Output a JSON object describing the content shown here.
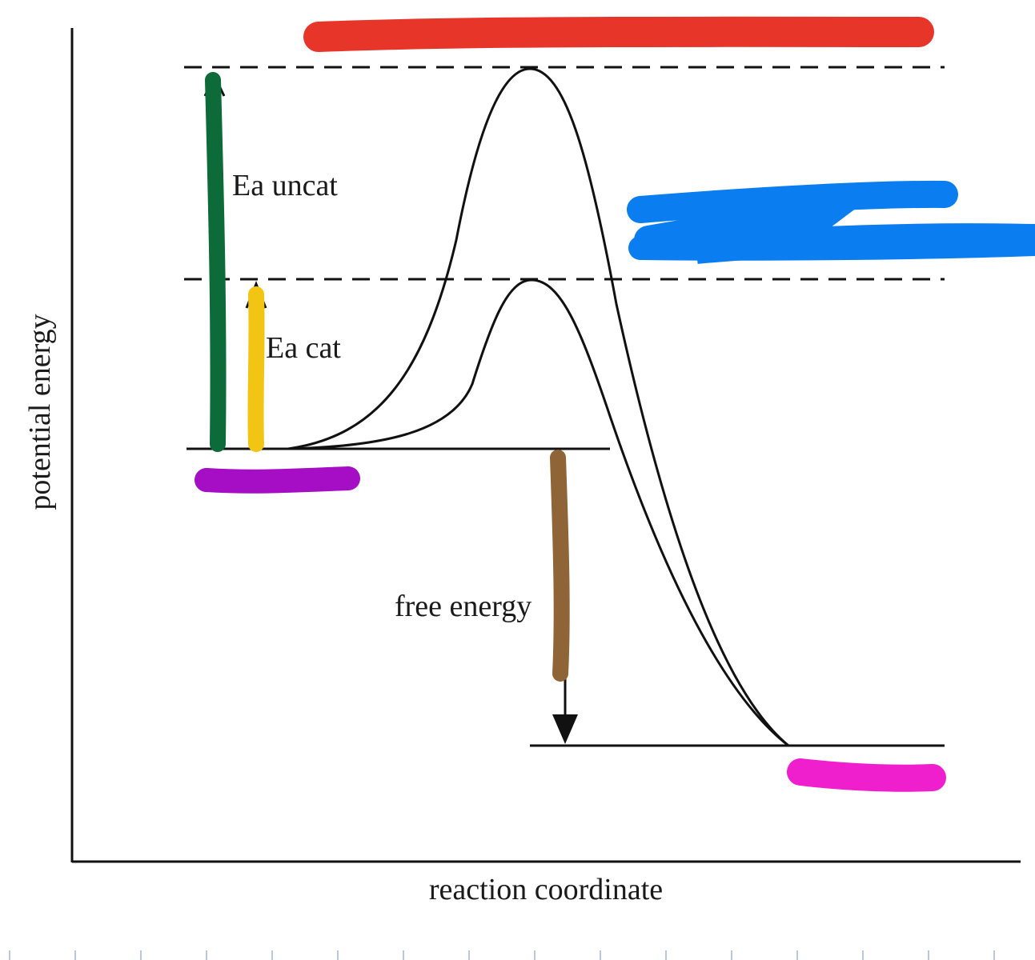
{
  "diagram": {
    "ylabel": "potential energy",
    "xlabel": "reaction coordinate",
    "labels": {
      "ea_uncat": "Ea uncat",
      "ea_cat": "Ea cat",
      "free_energy": "free energy"
    },
    "highlight_colors": {
      "red": "#e8352a",
      "blue": "#0a7ef0",
      "green": "#0d6b3a",
      "yellow": "#f2c413",
      "purple": "#a50ec4",
      "brown": "#8f6437",
      "magenta": "#f01fce"
    }
  }
}
